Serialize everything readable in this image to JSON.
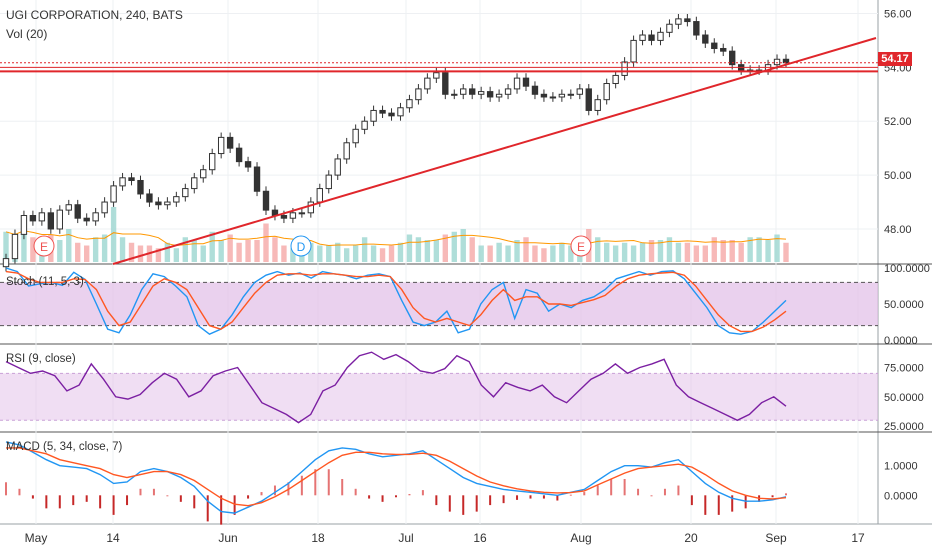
{
  "chart_data": {
    "type": "candlestick",
    "title": "UGI CORPORATION, 240, BATS",
    "x_ticks": [
      "May",
      "14",
      "Jun",
      "18",
      "Jul",
      "16",
      "Aug",
      "20",
      "Sep",
      "17"
    ],
    "price_axis": {
      "ticks": [
        "56.00",
        "54.00",
        "52.00",
        "50.00",
        "48.00"
      ],
      "range": [
        46.7,
        56.5
      ]
    },
    "last_price": "54.17",
    "price_series": [
      46.9,
      47.8,
      48.5,
      48.3,
      48.6,
      48.0,
      48.7,
      48.9,
      48.4,
      48.3,
      48.6,
      49.0,
      49.6,
      49.9,
      49.8,
      49.3,
      49.0,
      48.9,
      49.0,
      49.2,
      49.5,
      49.9,
      50.2,
      50.8,
      51.4,
      51.0,
      50.5,
      50.3,
      49.4,
      48.7,
      48.5,
      48.4,
      48.6,
      48.6,
      49.0,
      49.5,
      50.0,
      50.6,
      51.2,
      51.7,
      52.0,
      52.4,
      52.3,
      52.2,
      52.5,
      52.8,
      53.2,
      53.6,
      53.8,
      53.0,
      53.0,
      53.2,
      53.0,
      53.1,
      52.9,
      53.0,
      53.2,
      53.6,
      53.3,
      53.0,
      52.9,
      52.9,
      53.0,
      53.0,
      53.2,
      52.4,
      52.8,
      53.4,
      53.7,
      54.2,
      55.0,
      55.2,
      55.0,
      55.3,
      55.6,
      55.8,
      55.7,
      55.2,
      54.9,
      54.7,
      54.6,
      54.1,
      53.9,
      53.9,
      53.9,
      54.1,
      54.3,
      54.17
    ],
    "series": [
      {
        "name": "Vol (20)",
        "volumes": [
          0.55,
          0.45,
          0.7,
          0.45,
          0.35,
          0.5,
          0.4,
          0.6,
          0.35,
          0.3,
          0.45,
          0.5,
          1.0,
          0.45,
          0.35,
          0.3,
          0.3,
          0.25,
          0.35,
          0.25,
          0.45,
          0.4,
          0.3,
          0.55,
          0.4,
          0.5,
          0.35,
          0.4,
          0.4,
          0.7,
          0.45,
          0.3,
          0.25,
          0.3,
          0.35,
          0.3,
          0.3,
          0.35,
          0.25,
          0.3,
          0.45,
          0.3,
          0.25,
          0.3,
          0.35,
          0.5,
          0.45,
          0.4,
          0.4,
          0.5,
          0.55,
          0.6,
          0.45,
          0.3,
          0.3,
          0.35,
          0.3,
          0.4,
          0.45,
          0.3,
          0.25,
          0.3,
          0.35,
          0.3,
          0.25,
          0.6,
          0.45,
          0.35,
          0.3,
          0.35,
          0.3,
          0.35,
          0.4,
          0.4,
          0.45,
          0.35,
          0.35,
          0.3,
          0.3,
          0.45,
          0.4,
          0.4,
          0.35,
          0.45,
          0.45,
          0.4,
          0.5,
          0.35
        ]
      },
      {
        "name": "Stoch (11, 5, 3)",
        "axis": [
          "100.0000",
          "50.0000",
          "0.0000"
        ],
        "k": [
          100,
          95,
          75,
          78,
          80,
          76,
          94,
          84,
          50,
          15,
          10,
          35,
          70,
          92,
          88,
          75,
          60,
          20,
          8,
          15,
          35,
          60,
          80,
          90,
          95,
          90,
          93,
          86,
          95,
          92,
          90,
          85,
          90,
          92,
          88,
          55,
          25,
          20,
          25,
          40,
          10,
          15,
          50,
          70,
          80,
          30,
          70,
          65,
          40,
          50,
          45,
          55,
          60,
          70,
          85,
          90,
          95,
          90,
          95,
          96,
          85,
          65,
          45,
          20,
          10,
          8,
          12,
          25,
          40,
          55
        ],
        "d": [
          95,
          93,
          85,
          80,
          80,
          80,
          85,
          84,
          70,
          40,
          20,
          25,
          50,
          75,
          85,
          80,
          70,
          45,
          20,
          15,
          25,
          45,
          65,
          80,
          90,
          92,
          92,
          90,
          92,
          92,
          90,
          88,
          88,
          90,
          88,
          70,
          45,
          30,
          25,
          30,
          25,
          20,
          35,
          55,
          70,
          55,
          60,
          60,
          50,
          50,
          48,
          52,
          56,
          62,
          75,
          85,
          90,
          92,
          93,
          94,
          90,
          75,
          55,
          35,
          20,
          12,
          12,
          18,
          28,
          40
        ]
      },
      {
        "name": "RSI (9, close)",
        "axis": [
          "75.0000",
          "50.0000",
          "25.0000"
        ],
        "values": [
          80,
          75,
          70,
          72,
          68,
          55,
          60,
          78,
          65,
          50,
          48,
          52,
          62,
          70,
          65,
          50,
          55,
          68,
          72,
          75,
          60,
          45,
          40,
          35,
          28,
          35,
          55,
          60,
          75,
          85,
          88,
          82,
          86,
          80,
          72,
          70,
          74,
          85,
          80,
          60,
          50,
          62,
          58,
          55,
          60,
          50,
          45,
          55,
          65,
          70,
          78,
          70,
          75,
          78,
          82,
          60,
          50,
          45,
          40,
          35,
          30,
          35,
          45,
          50,
          42
        ]
      },
      {
        "name": "MACD (5, 34, close, 7)",
        "axis": [
          "1.0000",
          "0.0000"
        ],
        "macd": [
          1.8,
          1.7,
          1.45,
          1.2,
          1.0,
          0.95,
          0.9,
          0.7,
          0.4,
          0.45,
          0.8,
          0.9,
          0.8,
          0.6,
          0.3,
          -0.2,
          -0.55,
          -0.6,
          -0.4,
          -0.2,
          0.1,
          0.4,
          0.8,
          1.2,
          1.5,
          1.6,
          1.55,
          1.4,
          1.3,
          1.35,
          1.4,
          1.5,
          1.2,
          0.9,
          0.6,
          0.4,
          0.3,
          0.2,
          0.15,
          0.1,
          0.05,
          0.0,
          0.1,
          0.2,
          0.5,
          0.8,
          1.0,
          1.0,
          0.95,
          1.1,
          1.2,
          0.8,
          0.4,
          0.1,
          -0.1,
          -0.2,
          -0.2,
          -0.15,
          -0.05
        ],
        "signal": [
          1.6,
          1.6,
          1.5,
          1.4,
          1.2,
          1.1,
          1.0,
          0.9,
          0.7,
          0.6,
          0.7,
          0.8,
          0.8,
          0.7,
          0.5,
          0.2,
          -0.1,
          -0.3,
          -0.35,
          -0.25,
          -0.05,
          0.2,
          0.5,
          0.8,
          1.1,
          1.35,
          1.45,
          1.45,
          1.4,
          1.38,
          1.38,
          1.42,
          1.35,
          1.15,
          0.9,
          0.65,
          0.45,
          0.32,
          0.22,
          0.15,
          0.1,
          0.08,
          0.09,
          0.15,
          0.35,
          0.55,
          0.75,
          0.9,
          0.95,
          1.0,
          1.05,
          0.95,
          0.7,
          0.4,
          0.15,
          0.0,
          -0.1,
          -0.12,
          -0.08
        ]
      }
    ],
    "annotations": [
      "E",
      "D",
      "E"
    ],
    "grid": true
  },
  "icons": {
    "event_marker": "event-circle-icon"
  },
  "colors": {
    "up": "#26a69a",
    "down": "#ef5350",
    "trend": "#e0262b",
    "stoch_k": "#2196f3",
    "stoch_d": "#ff5722",
    "rsi": "#7b1fa2",
    "band": "#e1bee7"
  }
}
